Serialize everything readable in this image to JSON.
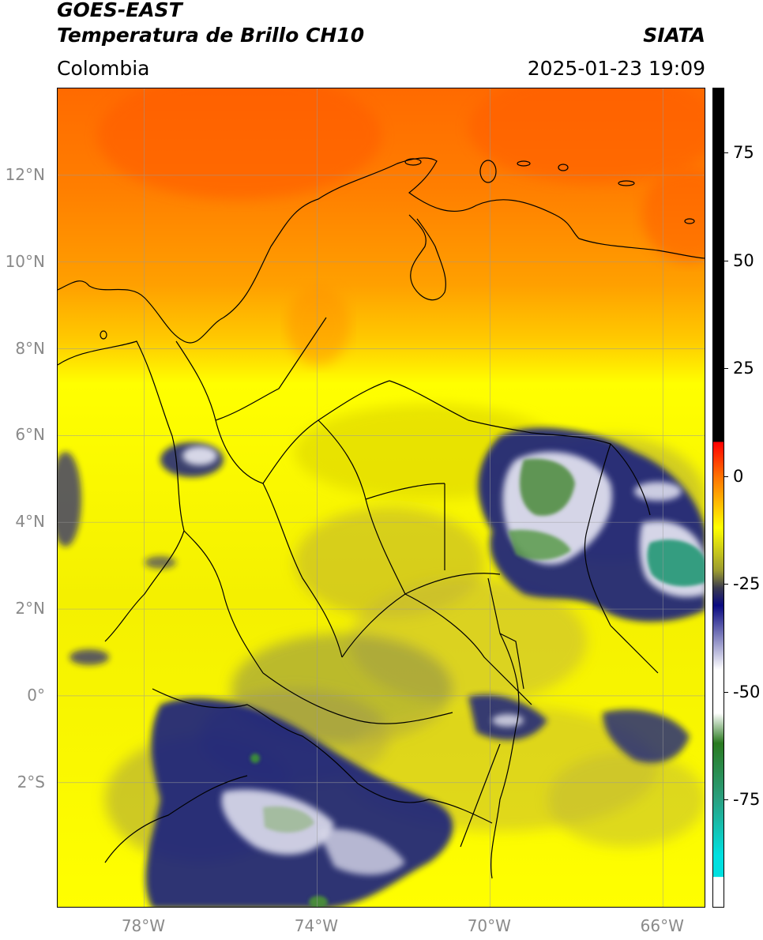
{
  "header": {
    "satellite": "GOES-EAST",
    "product": "Temperatura de Brillo CH10",
    "region": "Colombia",
    "brand": "SIATA",
    "datetime": "2025-01-23 19:09"
  },
  "map": {
    "lon_range": [
      -80.0,
      -65.0
    ],
    "lat_range": [
      -4.9,
      14.0
    ],
    "lat_ticks": [
      {
        "value": 12,
        "label": "12°N"
      },
      {
        "value": 10,
        "label": "10°N"
      },
      {
        "value": 8,
        "label": "8°N"
      },
      {
        "value": 6,
        "label": "6°N"
      },
      {
        "value": 4,
        "label": "4°N"
      },
      {
        "value": 2,
        "label": "2°N"
      },
      {
        "value": 0,
        "label": "0°"
      },
      {
        "value": -2,
        "label": "2°S"
      }
    ],
    "lon_ticks": [
      {
        "value": -78,
        "label": "78°W"
      },
      {
        "value": -74,
        "label": "74°W"
      },
      {
        "value": -70,
        "label": "70°W"
      },
      {
        "value": -66,
        "label": "66°W"
      }
    ],
    "gridlines": true,
    "colors": {
      "warm_orange": "#ff7a00",
      "yellow": "#ffff00",
      "olive": "#b8b040",
      "navy": "#10157a",
      "white": "#ffffff",
      "green": "#4a8a3a",
      "teal": "#2aa080",
      "coastline": "#000000"
    }
  },
  "colorbar": {
    "range": [
      -100,
      90
    ],
    "ticks": [
      {
        "value": 75,
        "label": "75"
      },
      {
        "value": 50,
        "label": "50"
      },
      {
        "value": 25,
        "label": "25"
      },
      {
        "value": 0,
        "label": "0"
      },
      {
        "value": -25,
        "label": "-25"
      },
      {
        "value": -50,
        "label": "-50"
      },
      {
        "value": -75,
        "label": "-75"
      }
    ],
    "stops": [
      {
        "value": 90,
        "color": "#000000"
      },
      {
        "value": 8,
        "color": "#000000"
      },
      {
        "value": 7.9,
        "color": "#ff0000"
      },
      {
        "value": 0,
        "color": "#ff7000"
      },
      {
        "value": -12,
        "color": "#ffff00"
      },
      {
        "value": -22,
        "color": "#9a9a30"
      },
      {
        "value": -26,
        "color": "#3a3a50"
      },
      {
        "value": -30,
        "color": "#0a0a80"
      },
      {
        "value": -45,
        "color": "#ffffff"
      },
      {
        "value": -55,
        "color": "#ffffff"
      },
      {
        "value": -62,
        "color": "#2a7a20"
      },
      {
        "value": -75,
        "color": "#2aa080"
      },
      {
        "value": -88,
        "color": "#00e0e0"
      },
      {
        "value": -93,
        "color": "#00e0e0"
      },
      {
        "value": -93.1,
        "color": "#ffffff"
      },
      {
        "value": -100,
        "color": "#ffffff"
      }
    ]
  }
}
